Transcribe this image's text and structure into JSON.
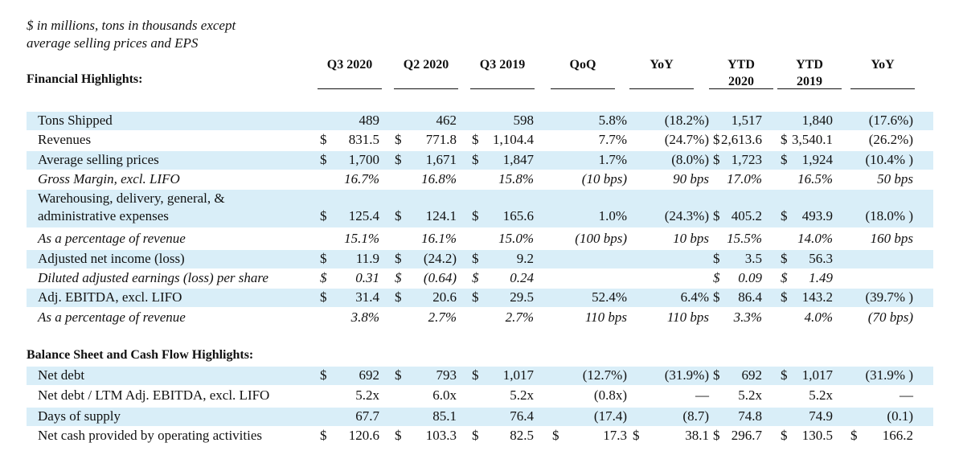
{
  "note": [
    "$ in millions, tons in thousands except",
    "average selling prices and EPS"
  ],
  "section1_title": "Financial Highlights:",
  "section2_title": "Balance Sheet and Cash Flow Highlights:",
  "columns": [
    {
      "line1": "",
      "line2": "Q3 2020"
    },
    {
      "line1": "",
      "line2": "Q2 2020"
    },
    {
      "line1": "",
      "line2": "Q3 2019"
    },
    {
      "line1": "",
      "line2": "QoQ"
    },
    {
      "line1": "",
      "line2": "YoY"
    },
    {
      "line1": "YTD",
      "line2": "2020"
    },
    {
      "line1": "YTD",
      "line2": "2019"
    },
    {
      "line1": "",
      "line2": "YoY"
    }
  ],
  "rows": [
    {
      "label": "Tons Shipped",
      "d1": "",
      "v1": "489",
      "d2": "",
      "v2": "462",
      "d3": "",
      "v3": "598",
      "d4": "",
      "v4": "5.8%",
      "d5": "",
      "v5": "(18.2%)",
      "d6": "",
      "v6": "1,517",
      "d7": "",
      "v7": "1,840",
      "d8": "",
      "v8": "(17.6%)"
    },
    {
      "label": "Revenues",
      "d1": "$",
      "v1": "831.5",
      "d2": "$",
      "v2": "771.8",
      "d3": "$",
      "v3": "1,104.4",
      "d4": "",
      "v4": "7.7%",
      "d5": "",
      "v5": "(24.7%)",
      "d6": "$",
      "v6": "2,613.6",
      "d7": "$",
      "v7": "3,540.1",
      "d8": "",
      "v8": "(26.2%)"
    },
    {
      "label": "Average selling prices",
      "d1": "$",
      "v1": "1,700",
      "d2": "$",
      "v2": "1,671",
      "d3": "$",
      "v3": "1,847",
      "d4": "",
      "v4": "1.7%",
      "d5": "",
      "v5": "(8.0%)",
      "d6": "$",
      "v6": "1,723",
      "d7": "$",
      "v7": "1,924",
      "d8": "",
      "v8": "(10.4% )"
    },
    {
      "label": "Gross Margin, excl. LIFO",
      "d1": "",
      "v1": "16.7%",
      "d2": "",
      "v2": "16.8%",
      "d3": "",
      "v3": "15.8%",
      "d4": "",
      "v4": "(10 bps)",
      "d5": "",
      "v5": "90 bps",
      "d6": "",
      "v6": "17.0%",
      "d7": "",
      "v7": "16.5%",
      "d8": "",
      "v8": "50 bps"
    },
    {
      "label": "Warehousing, delivery, general, &",
      "label2": "administrative expenses",
      "d1": "$",
      "v1": "125.4",
      "d2": "$",
      "v2": "124.1",
      "d3": "$",
      "v3": "165.6",
      "d4": "",
      "v4": "1.0%",
      "d5": "",
      "v5": "(24.3%)",
      "d6": "$",
      "v6": "405.2",
      "d7": "$",
      "v7": "493.9",
      "d8": "",
      "v8": "(18.0% )"
    },
    {
      "label": "As a percentage of revenue",
      "d1": "",
      "v1": "15.1%",
      "d2": "",
      "v2": "16.1%",
      "d3": "",
      "v3": "15.0%",
      "d4": "",
      "v4": "(100 bps)",
      "d5": "",
      "v5": "10 bps",
      "d6": "",
      "v6": "15.5%",
      "d7": "",
      "v7": "14.0%",
      "d8": "",
      "v8": "160 bps"
    },
    {
      "label": "Adjusted net income (loss)",
      "d1": "$",
      "v1": "11.9",
      "d2": "$",
      "v2": "(24.2)",
      "d3": "$",
      "v3": "9.2",
      "d4": "",
      "v4": "",
      "d5": "",
      "v5": "",
      "d6": "$",
      "v6": "3.5",
      "d7": "$",
      "v7": "56.3",
      "d8": "",
      "v8": ""
    },
    {
      "label": "Diluted adjusted earnings (loss) per share",
      "d1": "$",
      "v1": "0.31",
      "d2": "$",
      "v2": "(0.64)",
      "d3": "$",
      "v3": "0.24",
      "d4": "",
      "v4": "",
      "d5": "",
      "v5": "",
      "d6": "$",
      "v6": "0.09",
      "d7": "$",
      "v7": "1.49",
      "d8": "",
      "v8": ""
    },
    {
      "label": "Adj. EBITDA, excl. LIFO",
      "d1": "$",
      "v1": "31.4",
      "d2": "$",
      "v2": "20.6",
      "d3": "$",
      "v3": "29.5",
      "d4": "",
      "v4": "52.4%",
      "d5": "",
      "v5": "6.4%",
      "d6": "$",
      "v6": "86.4",
      "d7": "$",
      "v7": "143.2",
      "d8": "",
      "v8": "(39.7% )"
    },
    {
      "label": "As a percentage of revenue",
      "d1": "",
      "v1": "3.8%",
      "d2": "",
      "v2": "2.7%",
      "d3": "",
      "v3": "2.7%",
      "d4": "",
      "v4": "110 bps",
      "d5": "",
      "v5": "110 bps",
      "d6": "",
      "v6": "3.3%",
      "d7": "",
      "v7": "4.0%",
      "d8": "",
      "v8": "(70 bps)"
    },
    {
      "label": "Net debt",
      "d1": "$",
      "v1": "692",
      "d2": "$",
      "v2": "793",
      "d3": "$",
      "v3": "1,017",
      "d4": "",
      "v4": "(12.7%)",
      "d5": "",
      "v5": "(31.9%)",
      "d6": "$",
      "v6": "692",
      "d7": "$",
      "v7": "1,017",
      "d8": "",
      "v8": "(31.9% )"
    },
    {
      "label": "Net debt / LTM Adj. EBITDA, excl. LIFO",
      "d1": "",
      "v1": "5.2x",
      "d2": "",
      "v2": "6.0x",
      "d3": "",
      "v3": "5.2x",
      "d4": "",
      "v4": "(0.8x)",
      "d5": "",
      "v5": "—",
      "d6": "",
      "v6": "5.2x",
      "d7": "",
      "v7": "5.2x",
      "d8": "",
      "v8": "—"
    },
    {
      "label": "Days of supply",
      "d1": "",
      "v1": "67.7",
      "d2": "",
      "v2": "85.1",
      "d3": "",
      "v3": "76.4",
      "d4": "",
      "v4": "(17.4)",
      "d5": "",
      "v5": "(8.7)",
      "d6": "",
      "v6": "74.8",
      "d7": "",
      "v7": "74.9",
      "d8": "",
      "v8": "(0.1)"
    },
    {
      "label": "Net cash provided by operating activities",
      "d1": "$",
      "v1": "120.6",
      "d2": "$",
      "v2": "103.3",
      "d3": "$",
      "v3": "82.5",
      "d4": "$",
      "v4": "17.3",
      "d5": "$",
      "v5": "38.1",
      "d6": "$",
      "v6": "296.7",
      "d7": "$",
      "v7": "130.5",
      "d8": "$",
      "v8": "166.2"
    }
  ],
  "band_color": "#d9eef8"
}
